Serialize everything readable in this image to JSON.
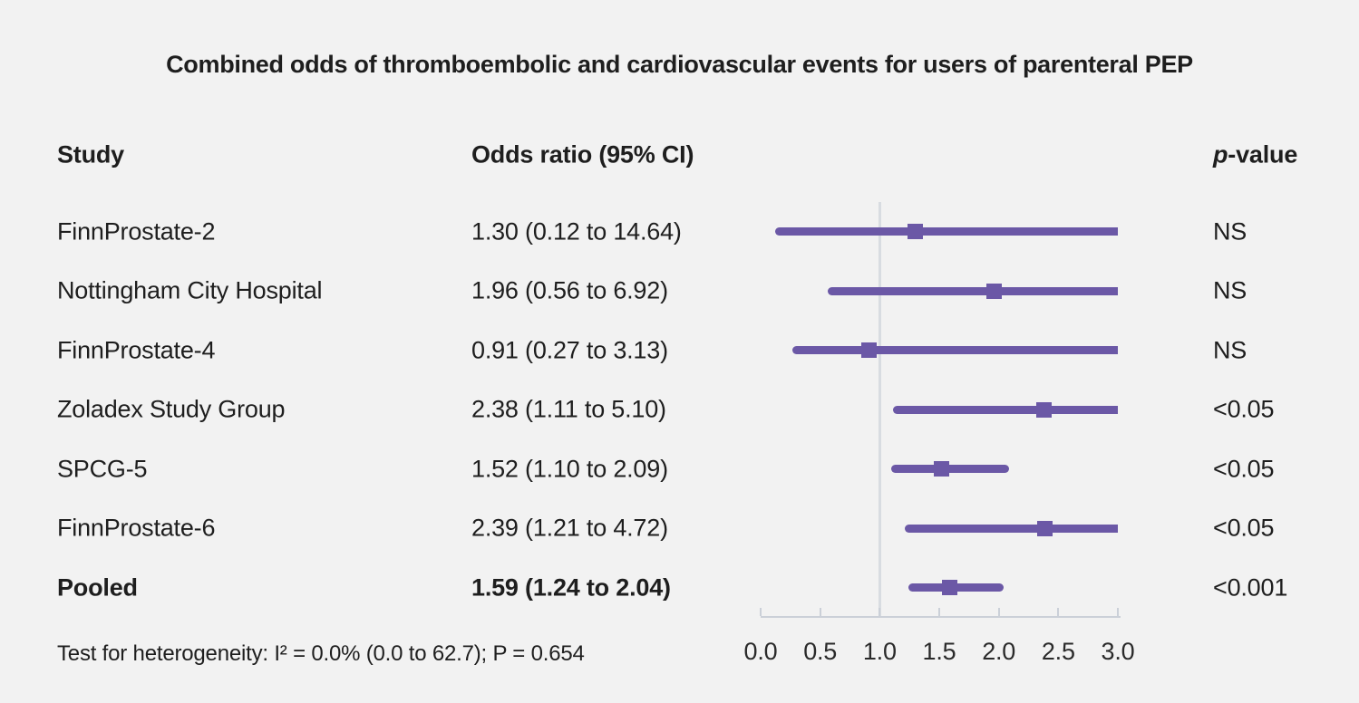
{
  "title": "Combined odds of thromboembolic and cardiovascular events for users of parenteral PEP",
  "columns": {
    "study": "Study",
    "odds_ratio": "Odds ratio (95% CI)",
    "p_italic": "p",
    "p_rest": "-value"
  },
  "footer": "Test for heterogeneity: I² = 0.0% (0.0 to 62.7); P = 0.654",
  "colors": {
    "background": "#f2f2f2",
    "accent_purple": "#6b58a6",
    "reference_line": "#d8dce1",
    "axis": "#cbd0d8",
    "text": "#1e1e1e"
  },
  "chart_data": {
    "type": "forest",
    "title": "Combined odds of thromboembolic and cardiovascular events for users of parenteral PEP",
    "xlim": [
      0,
      3
    ],
    "reference_line_x": 1.0,
    "tick_values": [
      0,
      0.5,
      1,
      1.5,
      2,
      2.5,
      3
    ],
    "tick_labels": [
      "0.0",
      "0.5",
      "1.0",
      "1.5",
      "2.0",
      "2.5",
      "3.0"
    ],
    "studies": [
      {
        "study": "FinnProstate-2",
        "or": 1.3,
        "ci_low": 0.12,
        "ci_high": 14.64,
        "or_label": "1.30 (0.12 to 14.64)",
        "p": "NS",
        "bold": false
      },
      {
        "study": "Nottingham City Hospital",
        "or": 1.96,
        "ci_low": 0.56,
        "ci_high": 6.92,
        "or_label": "1.96 (0.56 to 6.92)",
        "p": "NS",
        "bold": false
      },
      {
        "study": "FinnProstate-4",
        "or": 0.91,
        "ci_low": 0.27,
        "ci_high": 3.13,
        "or_label": "0.91 (0.27 to 3.13)",
        "p": "NS",
        "bold": false
      },
      {
        "study": "Zoladex Study Group",
        "or": 2.38,
        "ci_low": 1.11,
        "ci_high": 5.1,
        "or_label": "2.38 (1.11 to 5.10)",
        "p": "<0.05",
        "bold": false
      },
      {
        "study": "SPCG-5",
        "or": 1.52,
        "ci_low": 1.1,
        "ci_high": 2.09,
        "or_label": "1.52 (1.10 to 2.09)",
        "p": "<0.05",
        "bold": false
      },
      {
        "study": "FinnProstate-6",
        "or": 2.39,
        "ci_low": 1.21,
        "ci_high": 4.72,
        "or_label": "2.39 (1.21 to 4.72)",
        "p": "<0.05",
        "bold": false
      },
      {
        "study": "Pooled",
        "or": 1.59,
        "ci_low": 1.24,
        "ci_high": 2.04,
        "or_label": "1.59 (1.24 to 2.04)",
        "p": "<0.001",
        "bold": true
      }
    ]
  }
}
